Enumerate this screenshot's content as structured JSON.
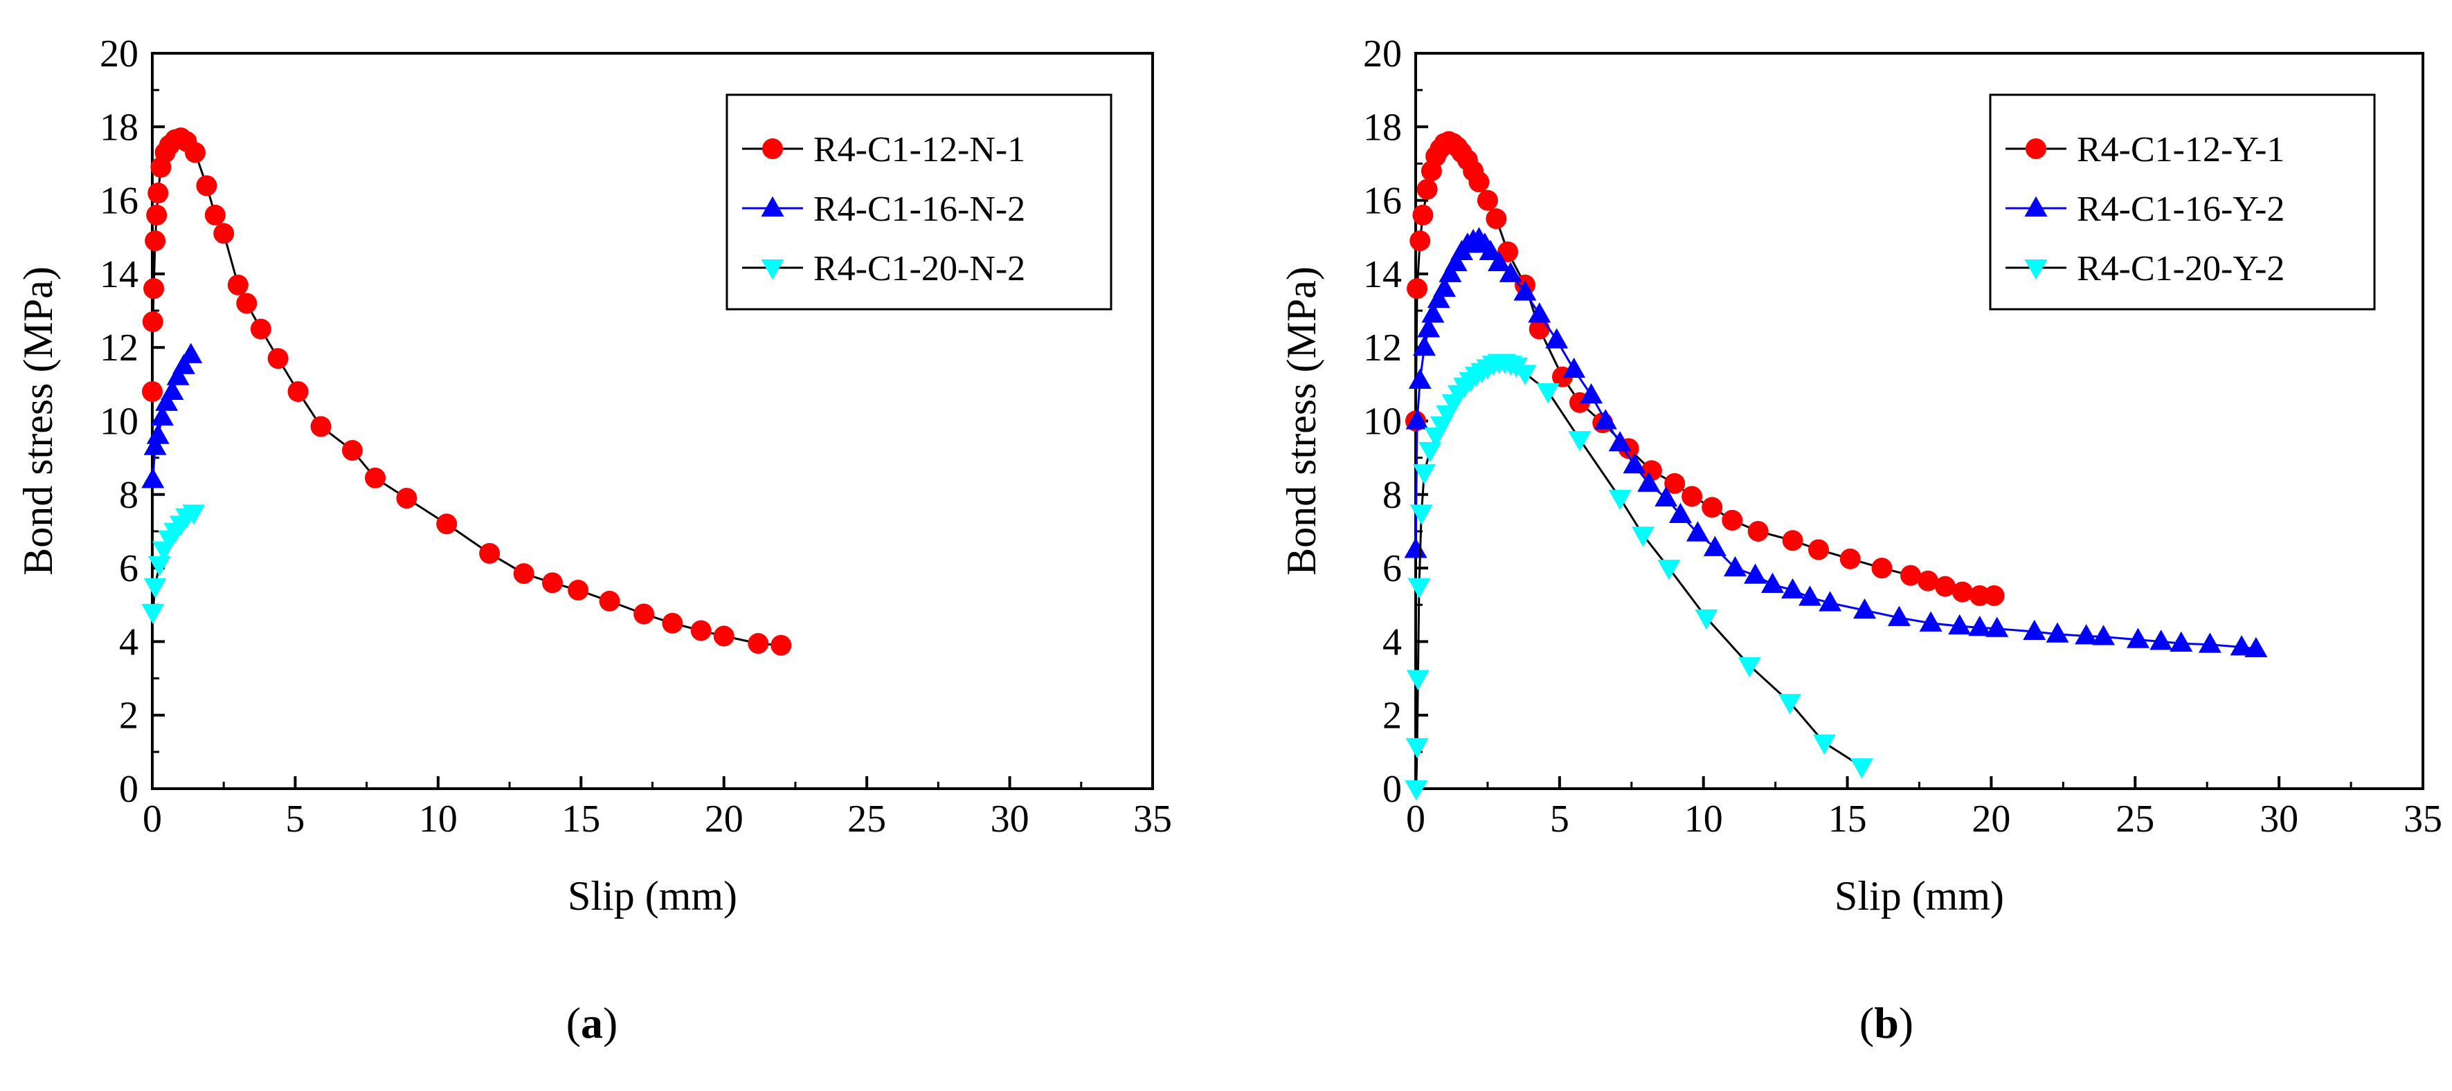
{
  "chart_data": [
    {
      "type": "line",
      "panel_label": "a",
      "xlabel": "Slip (mm)",
      "ylabel": "Bond stress (MPa)",
      "xlim": [
        0,
        35
      ],
      "ylim": [
        0,
        20
      ],
      "xticks": [
        0,
        5,
        10,
        15,
        20,
        25,
        30,
        35
      ],
      "yticks": [
        0,
        2,
        4,
        6,
        8,
        10,
        12,
        14,
        16,
        18,
        20
      ],
      "legend_position": "top-right",
      "series": [
        {
          "name": "R4-C1-12-N-1",
          "color": "#ff0000",
          "line_color": "#000000",
          "marker": "circle",
          "x": [
            0.0,
            0.02,
            0.05,
            0.1,
            0.15,
            0.2,
            0.3,
            0.45,
            0.6,
            0.8,
            1.0,
            1.2,
            1.5,
            1.9,
            2.2,
            2.5,
            3.0,
            3.3,
            3.8,
            4.4,
            5.1,
            5.9,
            7.0,
            7.8,
            8.9,
            10.3,
            11.8,
            13.0,
            14.0,
            14.9,
            16.0,
            17.2,
            18.2,
            19.2,
            20.0,
            21.2,
            22.0
          ],
          "y": [
            10.8,
            12.7,
            13.6,
            14.9,
            15.6,
            16.2,
            16.9,
            17.3,
            17.5,
            17.65,
            17.7,
            17.6,
            17.3,
            16.4,
            15.6,
            15.1,
            13.7,
            13.2,
            12.5,
            11.7,
            10.8,
            9.85,
            9.2,
            8.45,
            7.9,
            7.2,
            6.4,
            5.85,
            5.6,
            5.4,
            5.1,
            4.75,
            4.5,
            4.3,
            4.15,
            3.95,
            3.9
          ]
        },
        {
          "name": "R4-C1-16-N-2",
          "color": "#0000ff",
          "line_color": "#0000ff",
          "marker": "triangle-up",
          "x": [
            0.02,
            0.1,
            0.2,
            0.35,
            0.5,
            0.7,
            0.9,
            1.1,
            1.35
          ],
          "y": [
            8.4,
            9.3,
            9.6,
            10.1,
            10.5,
            10.8,
            11.2,
            11.5,
            11.8
          ]
        },
        {
          "name": "R4-C1-20-N-2",
          "color": "#00ffff",
          "line_color": "#000000",
          "marker": "triangle-down",
          "x": [
            0.02,
            0.1,
            0.25,
            0.4,
            0.6,
            0.8,
            1.0,
            1.2,
            1.45
          ],
          "y": [
            4.8,
            5.5,
            6.1,
            6.5,
            6.8,
            7.0,
            7.2,
            7.4,
            7.5
          ]
        }
      ]
    },
    {
      "type": "line",
      "panel_label": "b",
      "xlabel": "Slip (mm)",
      "ylabel": "Bond stress (MPa)",
      "xlim": [
        0,
        35
      ],
      "ylim": [
        0,
        20
      ],
      "xticks": [
        0,
        5,
        10,
        15,
        20,
        25,
        30,
        35
      ],
      "yticks": [
        0,
        2,
        4,
        6,
        8,
        10,
        12,
        14,
        16,
        18,
        20
      ],
      "legend_position": "top-right",
      "series": [
        {
          "name": "R4-C1-12-Y-1",
          "color": "#ff0000",
          "line_color": "#000000",
          "marker": "circle",
          "x": [
            0.0,
            0.05,
            0.15,
            0.25,
            0.4,
            0.55,
            0.7,
            0.85,
            1.0,
            1.15,
            1.3,
            1.45,
            1.6,
            1.8,
            2.0,
            2.2,
            2.5,
            2.8,
            3.2,
            3.8,
            4.3,
            5.1,
            5.7,
            6.5,
            7.4,
            8.2,
            9.0,
            9.6,
            10.3,
            11.0,
            11.9,
            13.1,
            14.0,
            15.1,
            16.2,
            17.2,
            17.8,
            18.4,
            19.0,
            19.6,
            20.1
          ],
          "y": [
            10.0,
            13.6,
            14.9,
            15.6,
            16.3,
            16.8,
            17.2,
            17.4,
            17.55,
            17.6,
            17.55,
            17.45,
            17.3,
            17.1,
            16.8,
            16.5,
            16.0,
            15.5,
            14.6,
            13.7,
            12.5,
            11.2,
            10.5,
            9.95,
            9.25,
            8.65,
            8.3,
            7.95,
            7.65,
            7.3,
            7.0,
            6.75,
            6.5,
            6.25,
            6.0,
            5.8,
            5.65,
            5.5,
            5.35,
            5.25,
            5.25
          ]
        },
        {
          "name": "R4-C1-16-Y-2",
          "color": "#0000ff",
          "line_color": "#0000ff",
          "marker": "triangle-up",
          "x": [
            0.0,
            0.05,
            0.15,
            0.3,
            0.45,
            0.6,
            0.8,
            1.0,
            1.2,
            1.4,
            1.6,
            1.8,
            2.0,
            2.2,
            2.4,
            2.6,
            2.9,
            3.3,
            3.8,
            4.3,
            4.9,
            5.5,
            6.1,
            6.6,
            7.1,
            7.6,
            8.1,
            8.7,
            9.2,
            9.8,
            10.4,
            11.1,
            11.8,
            12.4,
            13.1,
            13.7,
            14.4,
            15.6,
            16.8,
            17.9,
            18.9,
            19.6,
            20.2,
            21.5,
            22.3,
            23.3,
            23.9,
            25.1,
            25.9,
            26.6,
            27.6,
            28.7,
            29.2
          ],
          "y": [
            6.5,
            10.0,
            11.1,
            12.0,
            12.5,
            12.9,
            13.3,
            13.6,
            14.0,
            14.3,
            14.6,
            14.8,
            14.9,
            14.95,
            14.8,
            14.6,
            14.3,
            14.0,
            13.5,
            12.9,
            12.2,
            11.4,
            10.7,
            10.0,
            9.4,
            8.8,
            8.3,
            7.9,
            7.45,
            6.95,
            6.55,
            6.0,
            5.8,
            5.55,
            5.4,
            5.2,
            5.05,
            4.85,
            4.65,
            4.5,
            4.42,
            4.38,
            4.35,
            4.27,
            4.2,
            4.15,
            4.13,
            4.05,
            4.0,
            3.95,
            3.92,
            3.85,
            3.8
          ]
        },
        {
          "name": "R4-C1-20-Y-2",
          "color": "#00ffff",
          "line_color": "#000000",
          "marker": "triangle-down",
          "x": [
            0.02,
            0.05,
            0.08,
            0.12,
            0.2,
            0.3,
            0.5,
            0.7,
            0.9,
            1.1,
            1.3,
            1.5,
            1.7,
            1.9,
            2.1,
            2.3,
            2.5,
            2.7,
            2.9,
            3.1,
            3.3,
            3.5,
            3.8,
            4.6,
            5.7,
            7.1,
            7.9,
            8.8,
            10.1,
            11.6,
            13.0,
            14.2,
            15.5
          ],
          "y": [
            0.0,
            1.15,
            3.0,
            5.5,
            7.5,
            8.6,
            9.2,
            9.6,
            9.9,
            10.2,
            10.5,
            10.75,
            10.95,
            11.1,
            11.25,
            11.35,
            11.45,
            11.55,
            11.6,
            11.6,
            11.55,
            11.5,
            11.3,
            10.8,
            9.5,
            7.9,
            6.9,
            6.0,
            4.65,
            3.35,
            2.35,
            1.25,
            0.6
          ]
        }
      ]
    }
  ]
}
